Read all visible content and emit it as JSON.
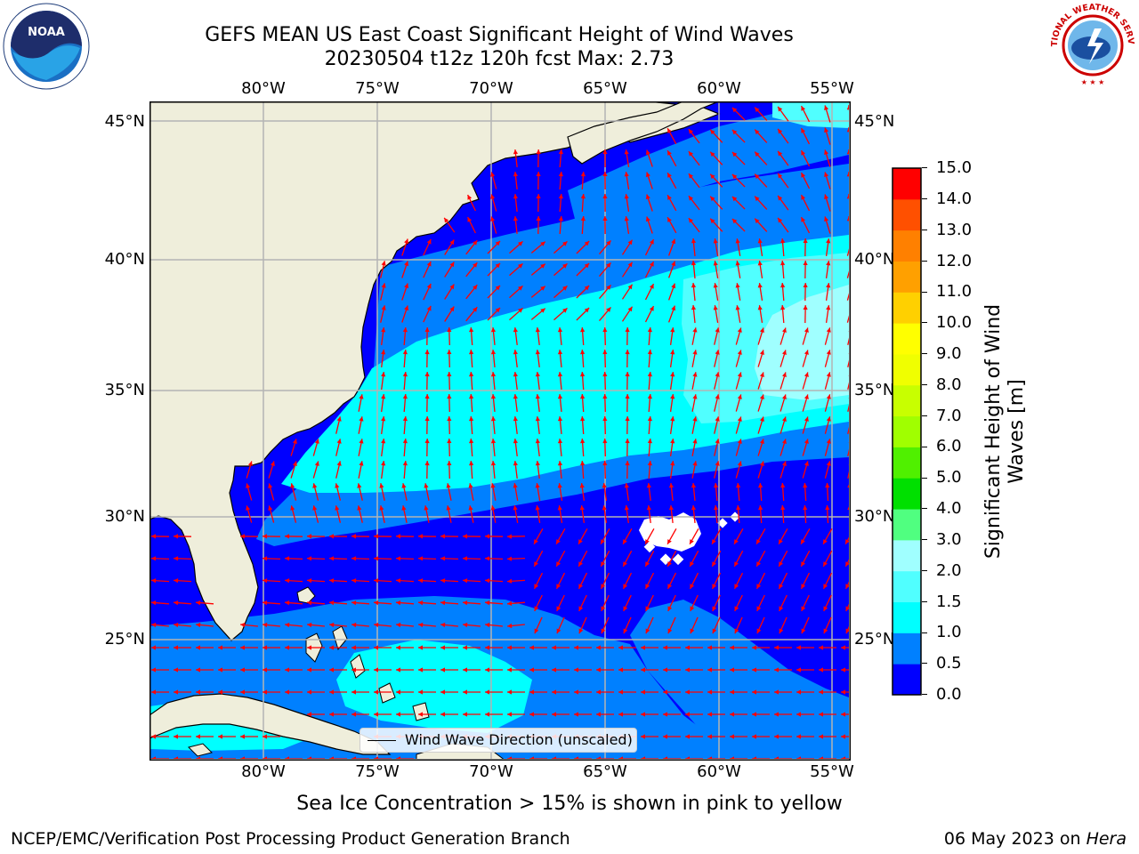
{
  "title": {
    "line1": "GEFS MEAN US East Coast Significant Height of Wind Waves",
    "line2": "20230504 t12z 120h fcst   Max: 2.73"
  },
  "map": {
    "lon_ticks": [
      "80°W",
      "75°W",
      "70°W",
      "65°W",
      "60°W",
      "55°W"
    ],
    "lat_ticks": [
      "45°N",
      "40°N",
      "35°N",
      "30°N",
      "25°N"
    ],
    "lon_range": [
      -85,
      -54.5
    ],
    "lat_range": [
      20.5,
      46
    ],
    "legend_label": "Wind Wave Direction (unscaled)",
    "colors": {
      "land": "#efeedb",
      "coast": "#000000",
      "grid": "#b4b4b4",
      "arrow": "#ff0000",
      "missing": "#ffffff"
    }
  },
  "colorbar": {
    "title": "Significant Height of Wind Waves [m]",
    "title_line1": "Significant Height of Wind",
    "title_line2": "Waves [m]",
    "levels": [
      "0.0",
      "0.5",
      "1.0",
      "1.5",
      "2.0",
      "3.0",
      "4.0",
      "5.0",
      "6.0",
      "7.0",
      "8.0",
      "9.0",
      "10.0",
      "11.0",
      "12.0",
      "13.0",
      "14.0",
      "15.0"
    ],
    "colors": [
      "#0000ff",
      "#0080ff",
      "#00ffff",
      "#50ffff",
      "#a0ffff",
      "#50ff80",
      "#00e000",
      "#50f000",
      "#a0ff00",
      "#c8ff00",
      "#f0ff00",
      "#ffff00",
      "#ffd000",
      "#ffa000",
      "#ff8000",
      "#ff5000",
      "#ff0000"
    ]
  },
  "note": "Sea Ice Concentration > 15% is shown in pink to yellow",
  "footer": {
    "left": "NCEP/EMC/Verification Post Processing Product Generation Branch",
    "date": "06 May 2023 on ",
    "machine": "Hera"
  },
  "logos": {
    "noaa": "NOAA",
    "nws": "NATIONAL WEATHER SERVICE"
  }
}
